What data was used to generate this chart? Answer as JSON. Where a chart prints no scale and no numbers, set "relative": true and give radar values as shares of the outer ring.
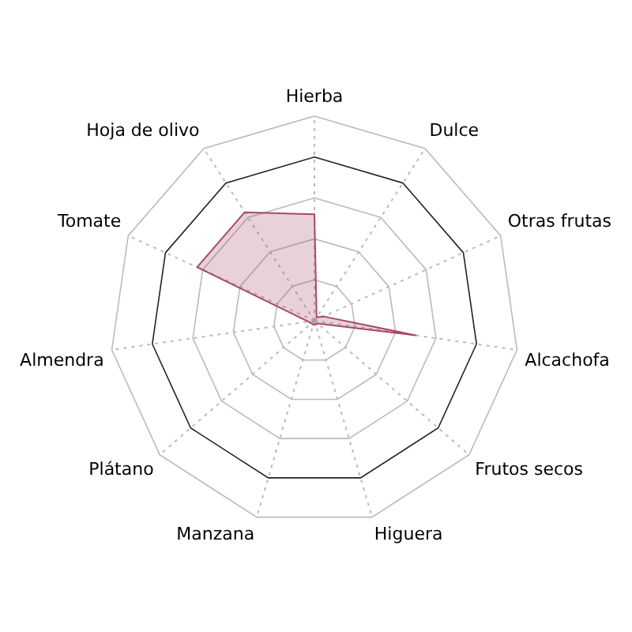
{
  "chart_data": {
    "type": "radar",
    "relative": true,
    "categories": [
      "Hierba",
      "Dulce",
      "Otras frutas",
      "Alcachofa",
      "Frutos secos",
      "Higuera",
      "Manzana",
      "Plátano",
      "Almendra",
      "Tomate",
      "Hoja de olivo"
    ],
    "series": [
      {
        "color": "#a8486a",
        "values": [
          0.52,
          0.02,
          0.05,
          0.5,
          0.02,
          0.02,
          0.02,
          0.02,
          0.03,
          0.63,
          0.63
        ]
      }
    ],
    "grid": true,
    "legend": false
  }
}
